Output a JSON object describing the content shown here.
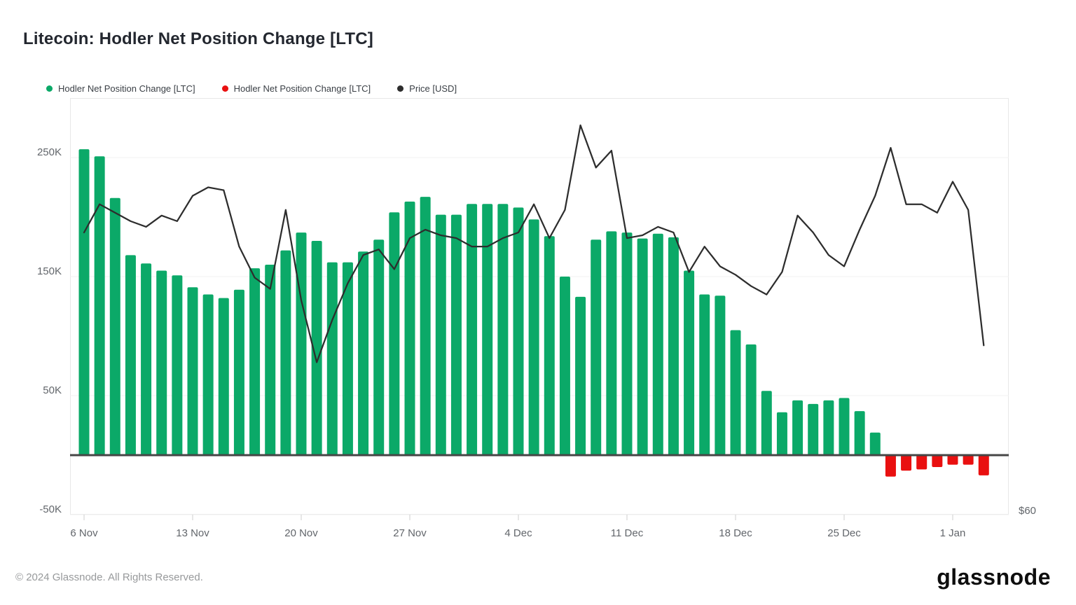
{
  "header": {
    "title": "Litecoin: Hodler Net Position Change [LTC]"
  },
  "legend": [
    {
      "label": "Hodler Net Position Change [LTC]",
      "color": "#0ba968"
    },
    {
      "label": "Hodler Net Position Change [LTC]",
      "color": "#e91010"
    },
    {
      "label": "Price [USD]",
      "color": "#2d2d2d"
    }
  ],
  "y_axis": {
    "ticks": [
      {
        "label": "250K",
        "value": 250000
      },
      {
        "label": "150K",
        "value": 150000
      },
      {
        "label": "50K",
        "value": 50000
      },
      {
        "label": "-50K",
        "value": -50000
      }
    ]
  },
  "x_axis": {
    "ticks": [
      {
        "label": "6 Nov",
        "day": 0
      },
      {
        "label": "13 Nov",
        "day": 7
      },
      {
        "label": "20 Nov",
        "day": 14
      },
      {
        "label": "27 Nov",
        "day": 21
      },
      {
        "label": "4 Dec",
        "day": 28
      },
      {
        "label": "11 Dec",
        "day": 35
      },
      {
        "label": "18 Dec",
        "day": 42
      },
      {
        "label": "25 Dec",
        "day": 49
      },
      {
        "label": "1 Jan",
        "day": 56
      }
    ]
  },
  "right_axis": {
    "label": "$60"
  },
  "footer": {
    "copyright": "© 2024 Glassnode. All Rights Reserved.",
    "logo": "glassnode"
  },
  "chart_data": {
    "type": "bar",
    "title": "Litecoin: Hodler Net Position Change [LTC]",
    "xlabel": "",
    "ylabel_left": "Hodler Net Position Change [LTC]",
    "ylabel_right": "Price [USD]",
    "ylim_left": [
      -50000,
      300000
    ],
    "ylim_right": [
      60,
      74.8
    ],
    "grid": "horizontal",
    "legend_position": "top-left",
    "dates": [
      "6 Nov",
      "7 Nov",
      "8 Nov",
      "9 Nov",
      "10 Nov",
      "11 Nov",
      "12 Nov",
      "13 Nov",
      "14 Nov",
      "15 Nov",
      "16 Nov",
      "17 Nov",
      "18 Nov",
      "19 Nov",
      "20 Nov",
      "21 Nov",
      "22 Nov",
      "23 Nov",
      "24 Nov",
      "25 Nov",
      "26 Nov",
      "27 Nov",
      "28 Nov",
      "29 Nov",
      "30 Nov",
      "1 Dec",
      "2 Dec",
      "3 Dec",
      "4 Dec",
      "5 Dec",
      "6 Dec",
      "7 Dec",
      "8 Dec",
      "9 Dec",
      "10 Dec",
      "11 Dec",
      "12 Dec",
      "13 Dec",
      "14 Dec",
      "15 Dec",
      "16 Dec",
      "17 Dec",
      "18 Dec",
      "19 Dec",
      "20 Dec",
      "21 Dec",
      "22 Dec",
      "23 Dec",
      "24 Dec",
      "25 Dec",
      "26 Dec",
      "27 Dec",
      "28 Dec",
      "29 Dec",
      "30 Dec",
      "31 Dec",
      "1 Jan",
      "2 Jan",
      "3 Jan"
    ],
    "series": [
      {
        "name": "Hodler Net Position Change [LTC]",
        "type": "bar",
        "unit": "LTC",
        "color_positive": "#0ba968",
        "color_negative": "#e91010",
        "values": [
          257000,
          251000,
          216000,
          168000,
          161000,
          155000,
          151000,
          141000,
          135000,
          132000,
          139000,
          157000,
          160000,
          172000,
          187000,
          180000,
          162000,
          162000,
          171000,
          181000,
          204000,
          213000,
          217000,
          202000,
          202000,
          211000,
          211000,
          211000,
          208000,
          198000,
          184000,
          150000,
          133000,
          181000,
          188000,
          187000,
          182000,
          186000,
          183000,
          155000,
          135000,
          134000,
          105000,
          93000,
          54000,
          36000,
          46000,
          43000,
          46000,
          48000,
          37000,
          19000,
          -18000,
          -13000,
          -12000,
          -10000,
          -8000,
          -8000,
          -17000
        ]
      },
      {
        "name": "Price [USD]",
        "type": "line",
        "unit": "USD",
        "color": "#2d2d2d",
        "values": [
          70.0,
          71.0,
          70.7,
          70.4,
          70.2,
          70.6,
          70.4,
          71.3,
          71.6,
          71.5,
          69.5,
          68.4,
          68.0,
          70.8,
          67.6,
          65.4,
          66.9,
          68.2,
          69.2,
          69.4,
          68.7,
          69.8,
          70.1,
          69.9,
          69.8,
          69.5,
          69.5,
          69.8,
          70.0,
          71.0,
          69.8,
          70.8,
          73.8,
          72.3,
          72.9,
          69.8,
          69.9,
          70.2,
          70.0,
          68.6,
          69.5,
          68.8,
          68.5,
          68.1,
          67.8,
          68.6,
          70.6,
          70.0,
          69.2,
          68.8,
          70.1,
          71.3,
          73.0,
          71.0,
          71.0,
          70.7,
          71.8,
          70.8,
          66.0
        ]
      }
    ]
  }
}
